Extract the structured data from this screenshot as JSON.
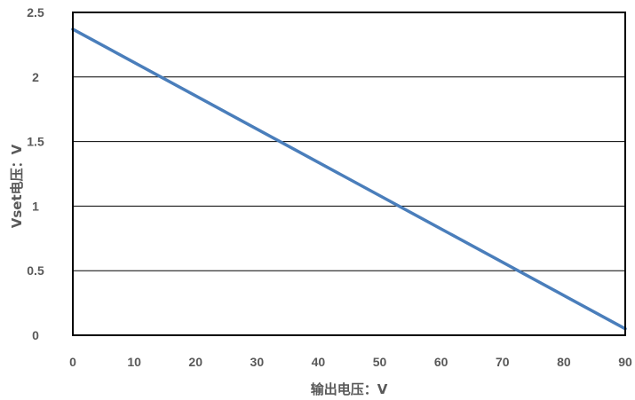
{
  "chart_data": {
    "type": "line",
    "title": "",
    "xlabel": "输出电压：V",
    "ylabel": "Vset电压：V",
    "xlim": [
      0,
      90
    ],
    "ylim": [
      0,
      2.5
    ],
    "xticks": [
      "0",
      "10",
      "20",
      "30",
      "40",
      "50",
      "60",
      "70",
      "80",
      "90"
    ],
    "yticks": [
      "0",
      "0.5",
      "1",
      "1.5",
      "2",
      "2.5"
    ],
    "grid": "horizontal",
    "legend": "none",
    "series": [
      {
        "x": [
          0,
          90
        ],
        "y": [
          2.37,
          0.05
        ],
        "color": "#4a7ebb"
      }
    ]
  }
}
